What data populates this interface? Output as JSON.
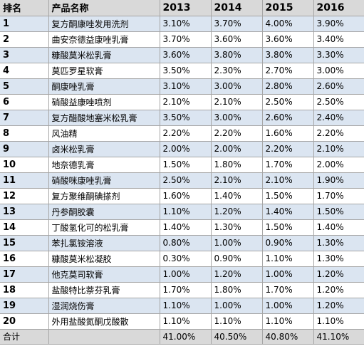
{
  "table": {
    "headers": [
      "排名",
      "产品名称",
      "2013",
      "2014",
      "2015",
      "2016"
    ],
    "rows": [
      [
        "1",
        "复方酮康唑发用洗剂",
        "3.10%",
        "3.70%",
        "4.00%",
        "3.90%"
      ],
      [
        "2",
        "曲安奈德益康唑乳膏",
        "3.70%",
        "3.60%",
        "3.60%",
        "3.40%"
      ],
      [
        "3",
        "糠酸莫米松乳膏",
        "3.60%",
        "3.80%",
        "3.80%",
        "3.30%"
      ],
      [
        "4",
        "莫匹罗星软膏",
        "3.50%",
        "2.30%",
        "2.70%",
        "3.00%"
      ],
      [
        "5",
        "酮康唑乳膏",
        "3.10%",
        "3.00%",
        "2.80%",
        "2.60%"
      ],
      [
        "6",
        "硝酸益康唑喷剂",
        "2.10%",
        "2.10%",
        "2.50%",
        "2.50%"
      ],
      [
        "7",
        "复方醋酸地塞米松乳膏",
        "3.50%",
        "3.00%",
        "2.60%",
        "2.40%"
      ],
      [
        "8",
        "风油精",
        "2.20%",
        "2.20%",
        "1.60%",
        "2.20%"
      ],
      [
        "9",
        "卤米松乳膏",
        "2.00%",
        "2.00%",
        "2.20%",
        "2.10%"
      ],
      [
        "10",
        "地奈德乳膏",
        "1.50%",
        "1.80%",
        "1.70%",
        "2.00%"
      ],
      [
        "11",
        "硝酸咪康唑乳膏",
        "2.50%",
        "2.10%",
        "2.10%",
        "1.90%"
      ],
      [
        "12",
        "复方聚维酮碘搽剂",
        "1.60%",
        "1.40%",
        "1.50%",
        "1.70%"
      ],
      [
        "13",
        "丹参酮胶囊",
        "1.10%",
        "1.20%",
        "1.40%",
        "1.50%"
      ],
      [
        "14",
        "丁酸氢化可的松乳膏",
        "1.40%",
        "1.30%",
        "1.50%",
        "1.40%"
      ],
      [
        "15",
        "苯扎氯铵溶液",
        "0.80%",
        "1.00%",
        "0.90%",
        "1.30%"
      ],
      [
        "16",
        "糠酸莫米松凝胶",
        "0.30%",
        "0.90%",
        "1.10%",
        "1.30%"
      ],
      [
        "17",
        "他克莫司软膏",
        "1.00%",
        "1.20%",
        "1.00%",
        "1.20%"
      ],
      [
        "18",
        "盐酸特比萘芬乳膏",
        "1.70%",
        "1.80%",
        "1.70%",
        "1.20%"
      ],
      [
        "19",
        "湿润烧伤膏",
        "1.10%",
        "1.00%",
        "1.00%",
        "1.20%"
      ],
      [
        "20",
        "外用盐酸氮酮戊酸散",
        "1.10%",
        "1.10%",
        "1.10%",
        "1.10%"
      ]
    ],
    "total": [
      "合计",
      "",
      "41.00%",
      "40.50%",
      "40.80%",
      "41.10%"
    ]
  },
  "colors": {
    "header_bg": "#d9d9d9",
    "band_bg": "#dbe5f1",
    "grid_line": "#a6a6a6"
  }
}
